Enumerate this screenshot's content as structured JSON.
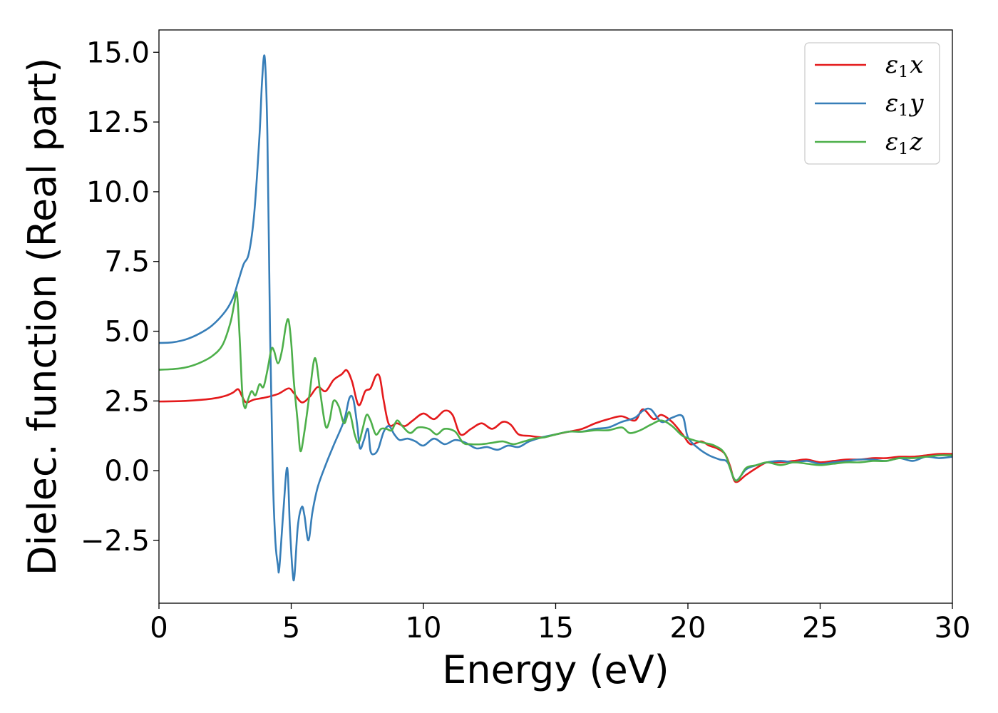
{
  "chart_data": {
    "type": "line",
    "title": "",
    "xlabel": "Energy (eV)",
    "ylabel": "Dielec. function (Real part)",
    "xlim": [
      0,
      30
    ],
    "ylim": [
      -4.75,
      15.8
    ],
    "xticks": [
      0,
      5,
      10,
      15,
      20,
      25,
      30
    ],
    "xtick_labels": [
      "0",
      "5",
      "10",
      "15",
      "20",
      "25",
      "30"
    ],
    "yticks": [
      -2.5,
      0.0,
      2.5,
      5.0,
      7.5,
      10.0,
      12.5,
      15.0
    ],
    "ytick_labels": [
      "−2.5",
      "0.0",
      "2.5",
      "5.0",
      "7.5",
      "10.0",
      "12.5",
      "15.0"
    ],
    "grid": false,
    "legend_position": "top-right",
    "series": [
      {
        "name": "ε1x",
        "legend_base": "ε",
        "legend_sub": "1",
        "legend_suffix": "x",
        "color": "#e41a1c",
        "x": [
          0,
          1,
          2,
          2.5,
          2.8,
          3.0,
          3.15,
          3.3,
          3.6,
          4.0,
          4.5,
          4.9,
          5.1,
          5.4,
          5.7,
          6.0,
          6.3,
          6.6,
          6.9,
          7.1,
          7.3,
          7.55,
          7.8,
          8.0,
          8.2,
          8.35,
          8.5,
          8.7,
          9.0,
          9.3,
          9.6,
          10.0,
          10.4,
          10.8,
          11.1,
          11.4,
          11.8,
          12.2,
          12.6,
          13.0,
          13.3,
          13.6,
          14.0,
          14.5,
          15.0,
          15.5,
          16.0,
          16.5,
          17.0,
          17.5,
          18.0,
          18.3,
          18.7,
          19.0,
          19.4,
          19.8,
          20.1,
          20.5,
          20.8,
          21.1,
          21.4,
          21.6,
          21.8,
          22.2,
          22.6,
          23.0,
          23.5,
          24.0,
          24.5,
          25.0,
          25.5,
          26.0,
          26.5,
          27.0,
          27.5,
          28.0,
          28.5,
          29.0,
          29.5,
          30.0
        ],
        "y": [
          2.48,
          2.5,
          2.58,
          2.68,
          2.8,
          2.92,
          2.65,
          2.45,
          2.55,
          2.62,
          2.75,
          2.95,
          2.78,
          2.45,
          2.65,
          3.0,
          2.85,
          3.25,
          3.45,
          3.6,
          3.2,
          2.35,
          2.85,
          2.95,
          3.4,
          3.35,
          2.5,
          1.65,
          1.7,
          1.6,
          1.8,
          2.05,
          1.85,
          2.15,
          2.0,
          1.3,
          1.5,
          1.7,
          1.5,
          1.75,
          1.65,
          1.3,
          1.25,
          1.2,
          1.3,
          1.4,
          1.5,
          1.7,
          1.85,
          1.95,
          1.8,
          2.2,
          1.85,
          2.0,
          1.75,
          1.3,
          0.95,
          1.05,
          0.9,
          0.8,
          0.6,
          0.15,
          -0.4,
          -0.15,
          0.1,
          0.3,
          0.3,
          0.35,
          0.4,
          0.3,
          0.35,
          0.4,
          0.4,
          0.45,
          0.45,
          0.5,
          0.5,
          0.55,
          0.6,
          0.6
        ]
      },
      {
        "name": "ε1y",
        "legend_base": "ε",
        "legend_sub": "1",
        "legend_suffix": "y",
        "color": "#377eb8",
        "x": [
          0,
          0.5,
          1.0,
          1.5,
          2.0,
          2.5,
          2.8,
          3.0,
          3.2,
          3.4,
          3.6,
          3.8,
          3.9,
          4.0,
          4.1,
          4.2,
          4.3,
          4.4,
          4.5,
          4.55,
          4.7,
          4.85,
          4.95,
          5.05,
          5.12,
          5.25,
          5.4,
          5.5,
          5.65,
          5.8,
          6.0,
          6.3,
          6.6,
          7.0,
          7.2,
          7.35,
          7.5,
          7.6,
          7.75,
          7.9,
          8.0,
          8.15,
          8.3,
          8.5,
          8.7,
          8.9,
          9.1,
          9.4,
          9.7,
          10.0,
          10.4,
          10.8,
          11.2,
          11.6,
          12.0,
          12.4,
          12.8,
          13.2,
          13.6,
          14.0,
          14.5,
          15.0,
          15.5,
          16.0,
          16.5,
          17.0,
          17.5,
          18.0,
          18.3,
          18.6,
          19.0,
          19.4,
          19.8,
          20.0,
          20.4,
          20.8,
          21.2,
          21.5,
          21.8,
          22.2,
          22.6,
          23.0,
          23.5,
          24.0,
          24.5,
          25.0,
          25.5,
          26.0,
          26.5,
          27.0,
          27.5,
          28.0,
          28.5,
          29.0,
          29.5,
          30.0
        ],
        "y": [
          4.58,
          4.6,
          4.7,
          4.9,
          5.2,
          5.7,
          6.2,
          6.8,
          7.4,
          7.8,
          9.2,
          12.0,
          14.0,
          14.8,
          12.0,
          5.0,
          0.0,
          -2.5,
          -3.4,
          -3.5,
          -1.5,
          0.1,
          -2.0,
          -3.6,
          -3.8,
          -2.0,
          -1.3,
          -1.6,
          -2.5,
          -1.5,
          -0.6,
          0.2,
          0.9,
          1.8,
          2.6,
          2.55,
          1.6,
          0.8,
          1.1,
          1.5,
          0.7,
          0.6,
          0.8,
          1.4,
          1.6,
          1.3,
          1.1,
          1.15,
          1.05,
          0.9,
          1.15,
          0.95,
          1.1,
          1.0,
          0.8,
          0.85,
          0.75,
          0.9,
          0.85,
          1.05,
          1.2,
          1.3,
          1.4,
          1.4,
          1.5,
          1.55,
          1.75,
          1.9,
          2.15,
          2.2,
          1.75,
          1.9,
          1.95,
          1.2,
          0.8,
          0.55,
          0.4,
          0.3,
          -0.35,
          0.05,
          0.2,
          0.3,
          0.35,
          0.3,
          0.35,
          0.25,
          0.3,
          0.35,
          0.4,
          0.4,
          0.35,
          0.45,
          0.35,
          0.5,
          0.45,
          0.5
        ]
      },
      {
        "name": "ε1z",
        "legend_base": "ε",
        "legend_sub": "1",
        "legend_suffix": "z",
        "color": "#4daf4a",
        "x": [
          0,
          0.5,
          1.0,
          1.5,
          2.0,
          2.4,
          2.7,
          2.85,
          2.95,
          3.05,
          3.15,
          3.25,
          3.35,
          3.5,
          3.65,
          3.8,
          3.95,
          4.1,
          4.25,
          4.35,
          4.5,
          4.65,
          4.8,
          4.9,
          5.0,
          5.1,
          5.25,
          5.35,
          5.5,
          5.7,
          5.85,
          5.95,
          6.1,
          6.3,
          6.45,
          6.6,
          6.8,
          7.0,
          7.2,
          7.4,
          7.55,
          7.7,
          7.85,
          8.0,
          8.2,
          8.4,
          8.6,
          8.8,
          9.0,
          9.2,
          9.5,
          9.8,
          10.2,
          10.5,
          10.8,
          11.2,
          11.5,
          11.8,
          12.2,
          12.6,
          13.0,
          13.4,
          13.8,
          14.2,
          14.6,
          15.0,
          15.5,
          16.0,
          16.5,
          17.0,
          17.5,
          17.8,
          18.2,
          18.6,
          19.0,
          19.4,
          19.8,
          20.2,
          20.6,
          21.0,
          21.4,
          21.8,
          22.2,
          22.6,
          23.0,
          23.5,
          24.0,
          24.5,
          25.0,
          25.5,
          26.0,
          26.5,
          27.0,
          27.5,
          28.0,
          28.5,
          29.0,
          29.5,
          30.0
        ],
        "y": [
          3.62,
          3.64,
          3.7,
          3.85,
          4.1,
          4.5,
          5.3,
          6.0,
          6.35,
          4.8,
          2.8,
          2.25,
          2.5,
          2.85,
          2.7,
          3.1,
          3.0,
          3.6,
          4.35,
          4.3,
          3.85,
          4.3,
          5.2,
          5.4,
          4.6,
          3.2,
          1.7,
          0.7,
          1.4,
          2.8,
          3.9,
          3.9,
          2.8,
          1.6,
          1.8,
          2.5,
          2.3,
          1.7,
          2.1,
          1.3,
          1.0,
          1.5,
          2.0,
          1.8,
          1.3,
          1.5,
          1.5,
          1.45,
          1.8,
          1.6,
          1.35,
          1.55,
          1.5,
          1.3,
          1.5,
          1.4,
          1.0,
          0.95,
          0.95,
          1.0,
          1.05,
          0.95,
          1.05,
          1.15,
          1.2,
          1.3,
          1.4,
          1.4,
          1.45,
          1.45,
          1.55,
          1.35,
          1.45,
          1.65,
          1.8,
          1.6,
          1.25,
          1.1,
          1.0,
          0.9,
          0.6,
          -0.35,
          0.1,
          0.2,
          0.3,
          0.2,
          0.3,
          0.25,
          0.2,
          0.25,
          0.3,
          0.3,
          0.35,
          0.35,
          0.45,
          0.45,
          0.5,
          0.55,
          0.55
        ]
      }
    ]
  }
}
